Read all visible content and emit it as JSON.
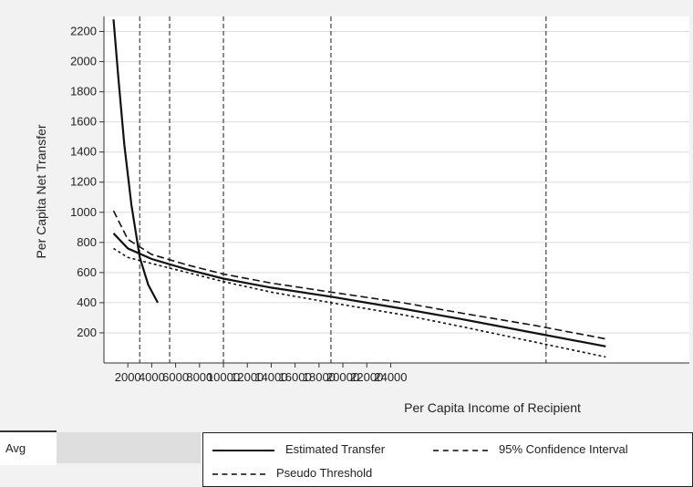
{
  "chart_data": {
    "type": "line",
    "title": "",
    "ylabel": "Per Capita Net Transfer",
    "xlabel": "Per Capita Income of Recipient",
    "ylim": [
      0,
      2300
    ],
    "xlim": [
      0,
      49000
    ],
    "y_ticks": [
      "200",
      "400",
      "600",
      "800",
      "1000",
      "1200",
      "1400",
      "1600",
      "1800",
      "2000",
      "2200"
    ],
    "x_ticks": [
      "2000",
      "4000",
      "6000",
      "8000",
      "10000",
      "12000",
      "14000",
      "16000",
      "18000",
      "20000",
      "22000",
      "24000"
    ],
    "vlines": [
      3000,
      5500,
      10000,
      19000,
      37000
    ],
    "series": [
      {
        "name": "Estimated Transfer",
        "style": "solid",
        "x": [
          800,
          1200,
          1700,
          2300,
          3000,
          3700,
          4500
        ],
        "y": [
          2280,
          1900,
          1450,
          1050,
          700,
          520,
          400
        ]
      },
      {
        "name": "Estimated Transfer",
        "style": "solid",
        "x": [
          800,
          2000,
          4000,
          7000,
          10000,
          14000,
          19000,
          25000,
          30000,
          36000,
          42000
        ],
        "y": [
          860,
          760,
          690,
          620,
          560,
          500,
          440,
          360,
          290,
          200,
          110
        ]
      },
      {
        "name": "Pseudo Threshold",
        "style": "dashed",
        "x": [
          800,
          2000,
          4000,
          7000,
          10000,
          14000,
          19000,
          25000,
          30000,
          36000,
          42000
        ],
        "y": [
          1010,
          820,
          720,
          650,
          590,
          530,
          470,
          400,
          330,
          250,
          160
        ]
      },
      {
        "name": "95% Confidence Interval",
        "style": "dotted",
        "x": [
          800,
          2000,
          4000,
          7000,
          10000,
          14000,
          19000,
          25000,
          30000,
          36000,
          42000
        ],
        "y": [
          760,
          700,
          660,
          600,
          540,
          470,
          400,
          320,
          240,
          140,
          40
        ]
      }
    ]
  },
  "legend": {
    "left_label": "Avg",
    "items": [
      {
        "label": "Estimated Transfer"
      },
      {
        "label": "95% Confidence Interval"
      },
      {
        "label": "Pseudo Threshold"
      }
    ]
  },
  "colors": {
    "plot_bg": "#ffffff",
    "grid": "#dcdcdc",
    "line": "#111111",
    "frame_bg": "#f2f2f2"
  }
}
